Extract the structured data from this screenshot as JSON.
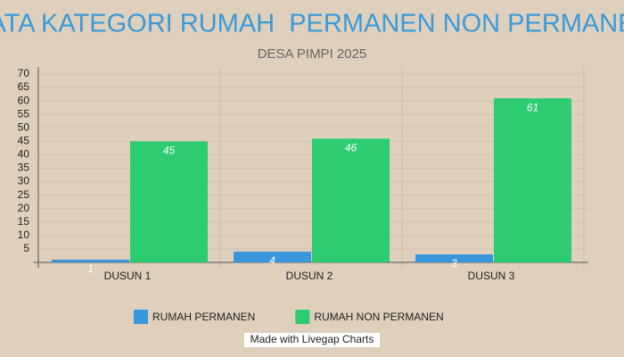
{
  "chart_data": {
    "type": "bar",
    "title": "DATA KATEGORI RUMAH  PERMANEN NON PERMANEN",
    "subtitle": "DESA PIMPI 2025",
    "categories": [
      "DUSUN 1",
      "DUSUN 2",
      "DUSUN 3"
    ],
    "series": [
      {
        "name": "RUMAH PERMANEN",
        "color": "#3a97dc",
        "values": [
          1,
          4,
          3
        ]
      },
      {
        "name": "RUMAH NON PERMANEN",
        "color": "#2ecc71",
        "values": [
          45,
          46,
          61
        ]
      }
    ],
    "ylim": [
      0,
      70
    ],
    "yticks": [
      5,
      10,
      15,
      20,
      25,
      30,
      35,
      40,
      45,
      50,
      55,
      60,
      65,
      70
    ],
    "grid": true,
    "footer": "Made with Livegap Charts"
  }
}
